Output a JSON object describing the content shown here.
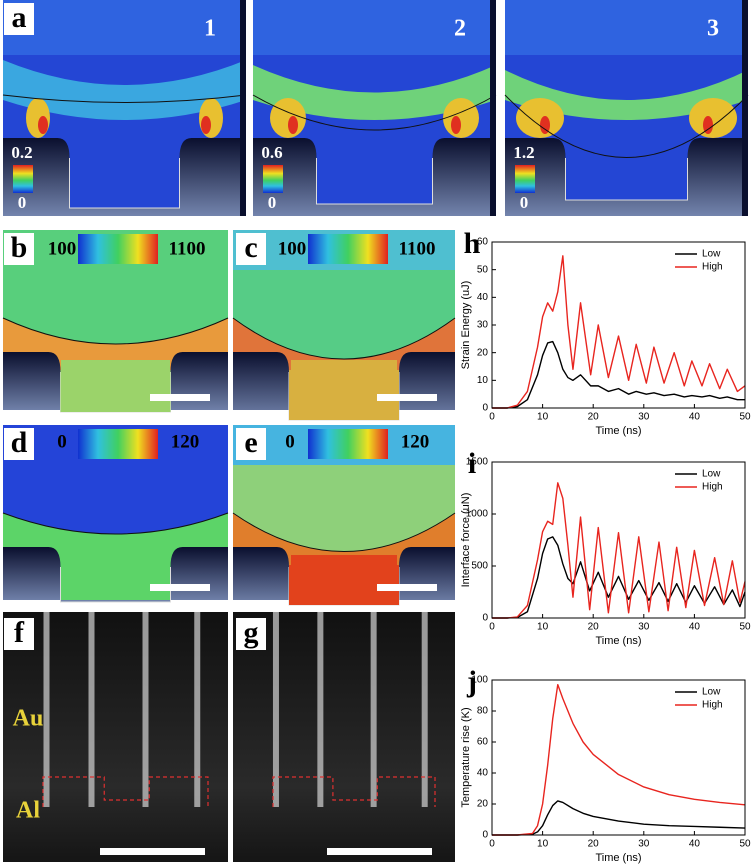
{
  "panels": [
    {
      "label": "a",
      "numbers": [
        "1",
        "2",
        "3"
      ],
      "scales": [
        [
          "0.2",
          "0"
        ],
        [
          "0.6",
          "0"
        ],
        [
          "1.2",
          "0"
        ]
      ]
    },
    {
      "label": "b",
      "scale": [
        "100",
        "1100"
      ]
    },
    {
      "label": "c",
      "scale": [
        "100",
        "1100"
      ]
    },
    {
      "label": "d",
      "scale": [
        "0",
        "120"
      ]
    },
    {
      "label": "e",
      "scale": [
        "0",
        "120"
      ]
    },
    {
      "label": "f",
      "materials": [
        "Au",
        "Al"
      ]
    },
    {
      "label": "g"
    }
  ],
  "chart_data": [
    {
      "type": "line",
      "label": "h",
      "ylabel": "Strain Energy (uJ)",
      "xlabel": "Time (ns)",
      "xlim": [
        0,
        50
      ],
      "xticks": [
        0,
        10,
        20,
        30,
        40,
        50
      ],
      "ylim": [
        0,
        60
      ],
      "yticks": [
        0,
        10,
        20,
        30,
        40,
        50,
        60
      ],
      "legend": "upper right",
      "x": [
        0,
        3,
        5,
        7,
        9,
        10,
        11,
        12,
        13,
        14,
        15,
        16,
        17.5,
        19.5,
        21,
        23,
        25,
        27,
        28.5,
        30.5,
        32,
        34,
        36,
        38,
        39.5,
        41.5,
        43,
        45,
        46.5,
        48.5,
        50
      ],
      "series": [
        {
          "name": "Low",
          "color": "#000000",
          "values": [
            0,
            0,
            0.5,
            3,
            12,
            19,
            23.5,
            24,
            20,
            14,
            11,
            10,
            12,
            8,
            8,
            6,
            7,
            5,
            6,
            5,
            5.5,
            4.5,
            5,
            4,
            4.5,
            4,
            4.5,
            3.5,
            4,
            3,
            3
          ]
        },
        {
          "name": "High",
          "color": "#e8251f",
          "values": [
            0,
            0,
            1,
            6,
            22,
            33,
            38,
            35,
            42,
            55,
            30,
            14,
            38,
            12,
            30,
            11,
            26,
            10,
            23,
            9,
            22,
            9,
            20,
            8,
            17,
            8,
            16,
            7,
            14,
            6,
            8
          ]
        }
      ]
    },
    {
      "type": "line",
      "label": "i",
      "ylabel": "Interface force (uN)",
      "xlabel": "Time (ns)",
      "xlim": [
        0,
        50
      ],
      "xticks": [
        0,
        10,
        20,
        30,
        40,
        50
      ],
      "ylim": [
        0,
        1500
      ],
      "yticks": [
        0,
        500,
        1000,
        1500
      ],
      "legend": "upper right",
      "x": [
        0,
        3,
        5,
        7,
        9,
        10,
        11,
        12,
        13,
        14,
        15,
        16,
        17.5,
        19.3,
        21,
        23,
        25,
        27,
        29,
        31,
        33,
        34.8,
        36.5,
        38.3,
        40,
        42,
        44,
        45.8,
        47.5,
        49,
        50
      ],
      "series": [
        {
          "name": "Low",
          "color": "#000000",
          "values": [
            0,
            0,
            5,
            60,
            380,
            620,
            760,
            780,
            700,
            520,
            380,
            330,
            540,
            260,
            440,
            200,
            400,
            180,
            360,
            170,
            340,
            160,
            330,
            150,
            310,
            140,
            300,
            130,
            270,
            110,
            250
          ]
        },
        {
          "name": "High",
          "color": "#e8251f",
          "values": [
            0,
            0,
            10,
            120,
            560,
            830,
            930,
            900,
            1300,
            1150,
            700,
            200,
            970,
            80,
            870,
            50,
            820,
            50,
            780,
            60,
            730,
            70,
            680,
            100,
            650,
            120,
            580,
            130,
            550,
            150,
            350
          ]
        }
      ]
    },
    {
      "type": "line",
      "label": "j",
      "ylabel": "Temperature rise (K)",
      "xlabel": "Time (ns)",
      "xlim": [
        0,
        50
      ],
      "xticks": [
        0,
        10,
        20,
        30,
        40,
        50
      ],
      "ylim": [
        0,
        100
      ],
      "yticks": [
        0,
        20,
        40,
        60,
        80,
        100
      ],
      "legend": "upper right",
      "x": [
        0,
        5,
        8,
        9,
        10,
        11,
        12,
        13,
        14,
        16,
        18,
        20,
        25,
        30,
        35,
        40,
        45,
        50
      ],
      "series": [
        {
          "name": "Low",
          "color": "#000000",
          "values": [
            0,
            0,
            0.5,
            2,
            6,
            13,
            19,
            22,
            21,
            17,
            14,
            12,
            9,
            7,
            6,
            5.5,
            5,
            4.5
          ]
        },
        {
          "name": "High",
          "color": "#e8251f",
          "values": [
            0,
            0,
            1,
            6,
            20,
            45,
            75,
            97,
            88,
            72,
            60,
            52,
            39,
            31,
            26,
            23,
            21,
            19.5
          ]
        }
      ]
    }
  ]
}
